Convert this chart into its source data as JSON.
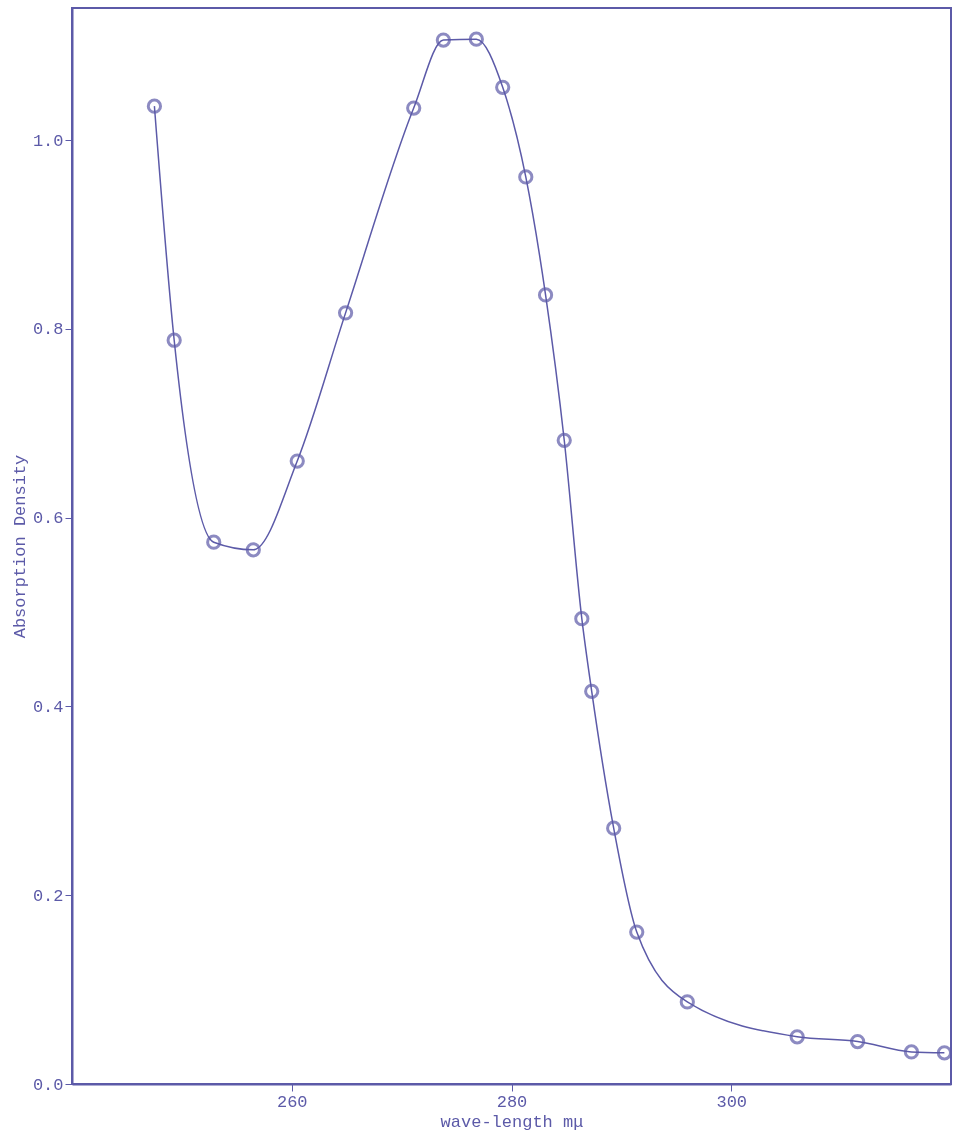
{
  "chart_data": {
    "type": "line",
    "xlabel": "wave-length mμ",
    "ylabel": "Absorption Density",
    "xlim": [
      240,
      320
    ],
    "xticks": [
      260,
      280,
      300
    ],
    "ylim": [
      0,
      1.14
    ],
    "yticks": [
      {
        "value": 0,
        "label": "0.0"
      },
      {
        "value": 0.2,
        "label": "0.2"
      },
      {
        "value": 0.4,
        "label": "0.4"
      },
      {
        "value": 0.6,
        "label": "0.6"
      },
      {
        "value": 0.8,
        "label": "0.8"
      },
      {
        "value": 1.0,
        "label": "1.0"
      }
    ],
    "grid": false,
    "marker": "circle",
    "line_style": "solid",
    "series": [
      {
        "color": "#5c5aa8",
        "x": [
          247.5,
          249.3,
          252.9,
          256.5,
          260.5,
          264.9,
          271.1,
          273.8,
          276.8,
          279.2,
          281.3,
          283.1,
          284.8,
          286.4,
          287.3,
          289.3,
          291.4,
          296.0,
          306.0,
          311.5,
          316.4,
          319.4
        ],
        "values": [
          1.036,
          0.788,
          0.574,
          0.566,
          0.66,
          0.817,
          1.034,
          1.106,
          1.107,
          1.056,
          0.961,
          0.836,
          0.682,
          0.493,
          0.416,
          0.271,
          0.161,
          0.087,
          0.05,
          0.045,
          0.034,
          0.033
        ]
      }
    ]
  }
}
